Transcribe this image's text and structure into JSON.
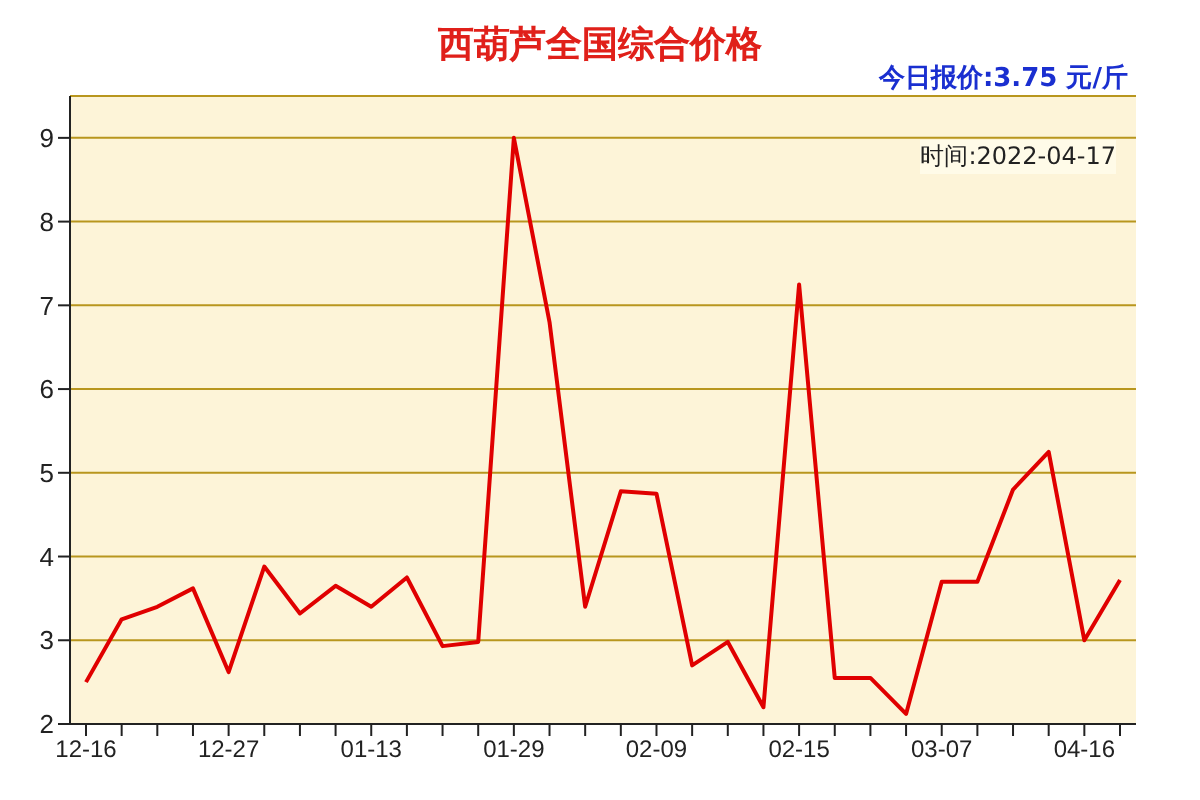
{
  "chart_data": {
    "type": "line",
    "title": "西葫芦全国综合价格",
    "subtitle": "今日报价:3.75 元/斤",
    "annotations": [
      "时间:2022-04-17"
    ],
    "categories": [
      "12-16",
      null,
      null,
      null,
      "12-27",
      null,
      null,
      null,
      "01-13",
      null,
      null,
      null,
      "01-29",
      null,
      null,
      null,
      "02-09",
      null,
      null,
      null,
      "02-15",
      null,
      null,
      null,
      "03-07",
      null,
      null,
      null,
      "04-16",
      null
    ],
    "series": [
      {
        "color": "#e00000",
        "values": [
          2.5,
          3.25,
          3.4,
          3.62,
          2.62,
          3.88,
          3.32,
          3.65,
          3.4,
          3.75,
          2.93,
          2.98,
          9.0,
          6.8,
          3.4,
          4.78,
          4.75,
          2.7,
          2.98,
          2.2,
          7.25,
          2.55,
          2.55,
          2.12,
          3.7,
          3.7,
          4.8,
          5.25,
          3.0,
          3.72
        ]
      }
    ],
    "ylim": [
      2,
      9.5
    ],
    "yticks": [
      2,
      3,
      4,
      5,
      6,
      7,
      8,
      9
    ],
    "grid": "y"
  }
}
